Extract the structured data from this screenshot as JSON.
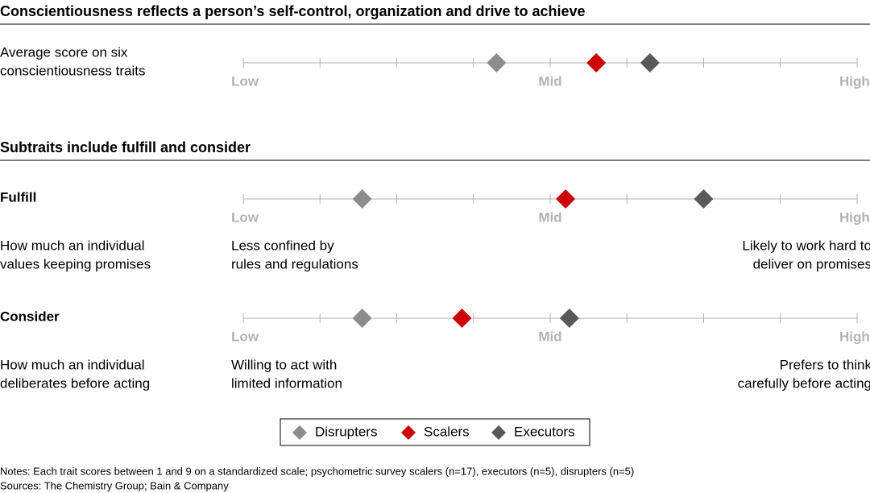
{
  "section_titles": [
    "Conscientiousness reflects a person’s self-control, organization and drive to achieve",
    "Subtraits include fulfill and consider"
  ],
  "chart_data": [
    {
      "type": "dot",
      "label": [
        "Average score on six",
        "conscientiousness traits"
      ],
      "xlim": [
        1,
        9
      ],
      "minor_xticks": [
        1,
        2,
        3,
        4,
        5,
        6,
        7,
        8,
        9
      ],
      "xticks": [
        {
          "value": 1,
          "label": "Low"
        },
        {
          "value": 5,
          "label": "Mid"
        },
        {
          "value": 9,
          "label": "High"
        }
      ],
      "series": [
        {
          "name": "Disrupters",
          "color": "#8c8c8c",
          "value": 4.3
        },
        {
          "name": "Scalers",
          "color": "#cc0000",
          "value": 5.6
        },
        {
          "name": "Executors",
          "color": "#595959",
          "value": 6.3
        }
      ]
    },
    {
      "type": "dot",
      "name": "Fulfill",
      "description": [
        "How much an individual",
        "values keeping promises"
      ],
      "low_note": [
        "Less confined by",
        "rules and regulations"
      ],
      "high_note": [
        "Likely to work hard to",
        "deliver on promises"
      ],
      "xlim": [
        1,
        9
      ],
      "minor_xticks": [
        1,
        2,
        3,
        4,
        5,
        6,
        7,
        8,
        9
      ],
      "xticks": [
        {
          "value": 1,
          "label": "Low"
        },
        {
          "value": 5,
          "label": "Mid"
        },
        {
          "value": 9,
          "label": "High"
        }
      ],
      "series": [
        {
          "name": "Disrupters",
          "color": "#8c8c8c",
          "value": 2.55
        },
        {
          "name": "Scalers",
          "color": "#cc0000",
          "value": 5.2
        },
        {
          "name": "Executors",
          "color": "#595959",
          "value": 7.0
        }
      ]
    },
    {
      "type": "dot",
      "name": "Consider",
      "description": [
        "How much an individual",
        "deliberates before acting"
      ],
      "low_note": [
        "Willing to act with",
        "limited information"
      ],
      "high_note": [
        "Prefers to think",
        "carefully before acting"
      ],
      "xlim": [
        1,
        9
      ],
      "minor_xticks": [
        1,
        2,
        3,
        4,
        5,
        6,
        7,
        8,
        9
      ],
      "xticks": [
        {
          "value": 1,
          "label": "Low"
        },
        {
          "value": 5,
          "label": "Mid"
        },
        {
          "value": 9,
          "label": "High"
        }
      ],
      "series": [
        {
          "name": "Disrupters",
          "color": "#8c8c8c",
          "value": 2.55
        },
        {
          "name": "Scalers",
          "color": "#cc0000",
          "value": 3.85
        },
        {
          "name": "Executors",
          "color": "#595959",
          "value": 5.25
        }
      ]
    }
  ],
  "notes": [
    "Notes: Each trait scores between 1 and 9 on a standardized scale; psychometric survey scalers (n=17), executors (n=5), disrupters (n=5)",
    "Sources: The Chemistry Group; Bain & Company"
  ]
}
